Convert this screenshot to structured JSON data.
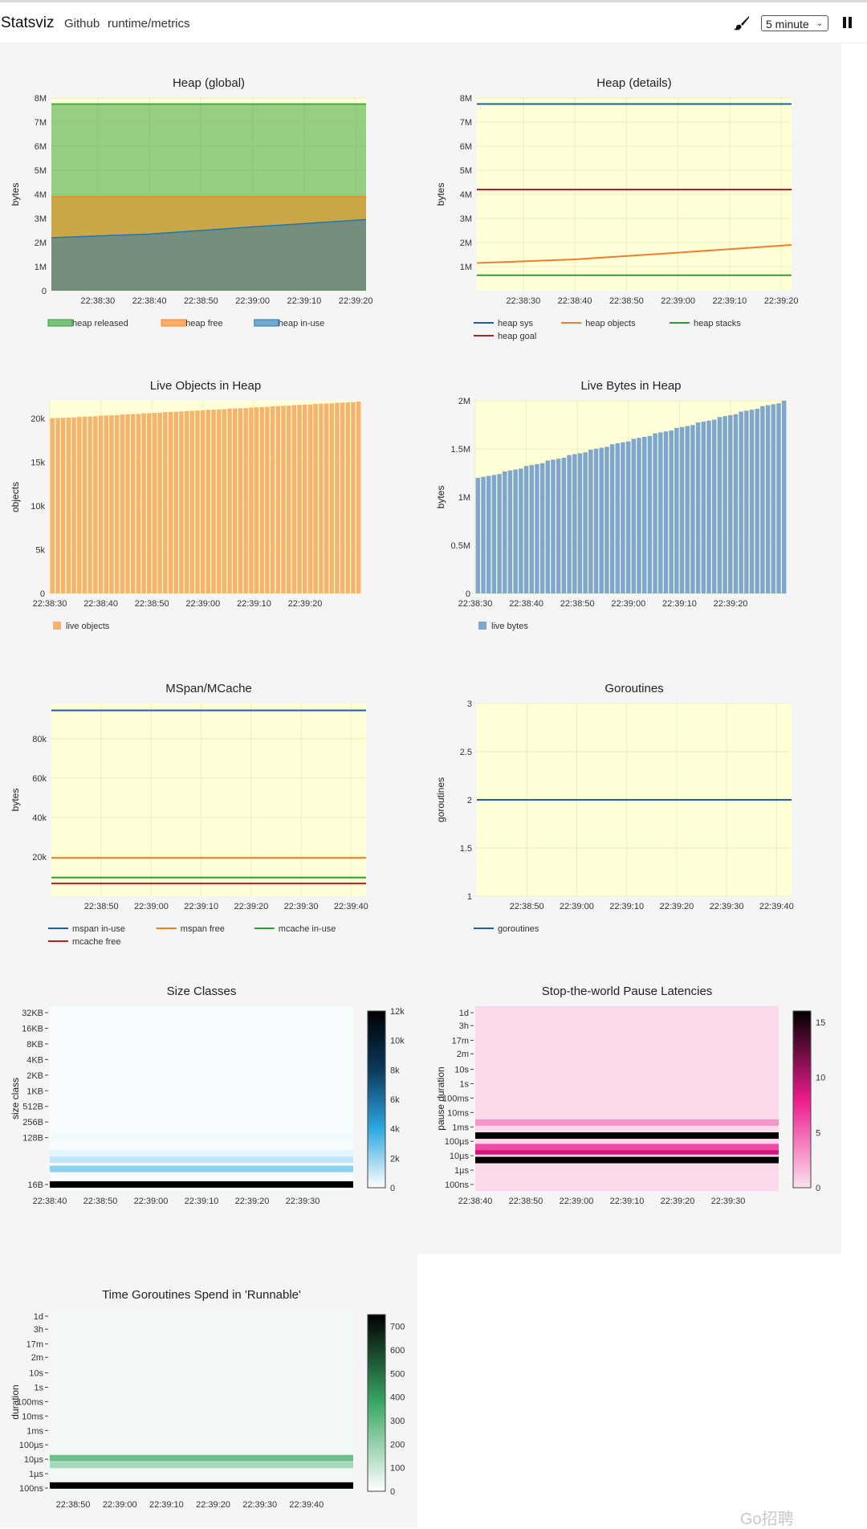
{
  "navbar": {
    "brand": "Statsviz",
    "links": [
      "Github",
      "runtime/metrics"
    ],
    "interval": "5 minute",
    "brush_icon": "brush-icon",
    "pause_icon": "pause-icon"
  },
  "colors": {
    "plot_bg": "#ffffd8",
    "page_bg": "#f5f5f5",
    "blue": "#1f5ea8",
    "orange": "#f07d2a",
    "green": "#2ca02c",
    "red": "#b22222"
  },
  "watermark": "Go招聘",
  "chart_data": [
    {
      "id": "heap-global",
      "type": "area",
      "title": "Heap (global)",
      "ylabel": "bytes",
      "ylim": [
        0,
        8000000
      ],
      "yticks": [
        "0",
        "1M",
        "2M",
        "3M",
        "4M",
        "5M",
        "6M",
        "7M",
        "8M"
      ],
      "xlim": [
        "22:38:21",
        "22:39:22"
      ],
      "xticks": [
        "22:38:30",
        "22:38:40",
        "22:38:50",
        "22:39:00",
        "22:39:10",
        "22:39:20"
      ],
      "legend": "bottom",
      "series": [
        {
          "name": "heap released",
          "color": "#2ca02c",
          "values_at": [
            "22:38:21",
            "22:39:22"
          ],
          "values": [
            7750000,
            7750000
          ]
        },
        {
          "name": "heap free",
          "color": "#ff7f0e",
          "values_at": [
            "22:38:21",
            "22:39:22"
          ],
          "values": [
            3900000,
            3900000
          ]
        },
        {
          "name": "heap in-use",
          "color": "#1f77b4",
          "values_at": [
            "22:38:21",
            "22:38:40",
            "22:39:00",
            "22:39:22"
          ],
          "values": [
            2200000,
            2350000,
            2650000,
            2950000
          ]
        }
      ]
    },
    {
      "id": "heap-details",
      "type": "line",
      "title": "Heap (details)",
      "ylabel": "bytes",
      "ylim": [
        0,
        8000000
      ],
      "yticks": [
        "1M",
        "2M",
        "3M",
        "4M",
        "5M",
        "6M",
        "7M",
        "8M"
      ],
      "xlim": [
        "22:38:21",
        "22:39:22"
      ],
      "xticks": [
        "22:38:30",
        "22:38:40",
        "22:38:50",
        "22:39:00",
        "22:39:10",
        "22:39:20"
      ],
      "legend": "bottom",
      "series": [
        {
          "name": "heap sys",
          "color": "#1f5ea8",
          "values": [
            7750000,
            7750000
          ]
        },
        {
          "name": "heap objects",
          "color": "#f07d2a",
          "values_at": [
            "22:38:21",
            "22:38:40",
            "22:39:00",
            "22:39:22"
          ],
          "values": [
            1150000,
            1300000,
            1580000,
            1900000
          ]
        },
        {
          "name": "heap stacks",
          "color": "#2ca02c",
          "values": [
            640000,
            640000
          ]
        },
        {
          "name": "heap goal",
          "color": "#b22222",
          "values": [
            4200000,
            4200000
          ]
        }
      ]
    },
    {
      "id": "live-objects",
      "type": "bar",
      "title": "Live Objects in Heap",
      "ylabel": "objects",
      "ylim": [
        0,
        22000
      ],
      "yticks": [
        "0",
        "5k",
        "10k",
        "15k",
        "20k"
      ],
      "xlim": [
        "22:38:30",
        "22:39:31"
      ],
      "xticks": [
        "22:38:30",
        "22:38:40",
        "22:38:50",
        "22:39:00",
        "22:39:10",
        "22:39:20"
      ],
      "legend": "bottom",
      "series": [
        {
          "name": "live objects",
          "color": "#f7b26b",
          "start": 20000,
          "end": 21900
        }
      ]
    },
    {
      "id": "live-bytes",
      "type": "bar",
      "title": "Live Bytes in Heap",
      "ylabel": "bytes",
      "ylim": [
        0,
        2000000
      ],
      "yticks": [
        "0",
        "0.5M",
        "1M",
        "1.5M",
        "2M"
      ],
      "xlim": [
        "22:38:30",
        "22:39:31"
      ],
      "xticks": [
        "22:38:30",
        "22:38:40",
        "22:38:50",
        "22:39:00",
        "22:39:10",
        "22:39:20"
      ],
      "legend": "bottom",
      "series": [
        {
          "name": "live bytes",
          "color": "#7ea6cf",
          "start": 1200000,
          "end": 2000000
        }
      ]
    },
    {
      "id": "mspan-mcache",
      "type": "line",
      "title": "MSpan/MCache",
      "ylabel": "bytes",
      "ylim": [
        0,
        98000
      ],
      "yticks": [
        "20k",
        "40k",
        "60k",
        "80k"
      ],
      "xlim": [
        "22:38:40",
        "22:39:43"
      ],
      "xticks": [
        "22:38:50",
        "22:39:00",
        "22:39:10",
        "22:39:20",
        "22:39:30",
        "22:39:40"
      ],
      "legend": "bottom",
      "series": [
        {
          "name": "mspan in-use",
          "color": "#1f5ea8",
          "values": [
            94500,
            94500
          ]
        },
        {
          "name": "mspan free",
          "color": "#f07d2a",
          "values": [
            19500,
            19500
          ]
        },
        {
          "name": "mcache in-use",
          "color": "#2ca02c",
          "values": [
            9500,
            9500
          ]
        },
        {
          "name": "mcache free",
          "color": "#b22222",
          "values": [
            6500,
            6500
          ]
        }
      ]
    },
    {
      "id": "goroutines",
      "type": "line",
      "title": "Goroutines",
      "ylabel": "goroutines",
      "ylim": [
        1,
        3
      ],
      "yticks": [
        "1",
        "1.5",
        "2",
        "2.5",
        "3"
      ],
      "xlim": [
        "22:38:40",
        "22:39:43"
      ],
      "xticks": [
        "22:38:50",
        "22:39:00",
        "22:39:10",
        "22:39:20",
        "22:39:30",
        "22:39:40"
      ],
      "legend": "bottom",
      "series": [
        {
          "name": "goroutines",
          "color": "#1f5ea8",
          "values": [
            2,
            2
          ]
        }
      ]
    },
    {
      "id": "size-classes",
      "type": "heatmap",
      "title": "Size Classes",
      "ylabel": "size class",
      "yticks": [
        "16B",
        "128B",
        "256B",
        "512B",
        "1KB",
        "2KB",
        "4KB",
        "8KB",
        "16KB",
        "32KB"
      ],
      "xlim": [
        "22:38:40",
        "22:39:40"
      ],
      "xticks": [
        "22:38:40",
        "22:38:50",
        "22:39:00",
        "22:39:10",
        "22:39:20",
        "22:39:30"
      ],
      "colorscale": [
        "#ffffff",
        "#2ea7e0",
        "#0a3a5e",
        "#000000"
      ],
      "colorbar_ticks": [
        "0",
        "2k",
        "4k",
        "6k",
        "8k",
        "10k",
        "12k"
      ],
      "zmax": 12000,
      "bands": [
        {
          "y": "16B",
          "z": 12000
        },
        {
          "y": "32B",
          "z": 2200
        },
        {
          "y": "48B",
          "z": 1200
        },
        {
          "y": "64B",
          "z": 500
        },
        {
          "y": "128B",
          "z": 250
        }
      ],
      "background_z": 150
    },
    {
      "id": "stw-pause",
      "type": "heatmap",
      "title": "Stop-the-world Pause Latencies",
      "ylabel": "pause duration",
      "yticks": [
        "100ns",
        "1µs",
        "10µs",
        "100µs",
        "1ms",
        "10ms",
        "100ms",
        "1s",
        "10s",
        "2m",
        "17m",
        "3h",
        "1d"
      ],
      "xlim": [
        "22:38:40",
        "22:39:40"
      ],
      "xticks": [
        "22:38:40",
        "22:38:50",
        "22:39:00",
        "22:39:10",
        "22:39:20",
        "22:39:30"
      ],
      "colorscale": [
        "#fbe0ef",
        "#ec1b8c",
        "#000000"
      ],
      "colorbar_ticks": [
        "0",
        "5",
        "10",
        "15"
      ],
      "zmax": 16,
      "bands": [
        {
          "y": "5µs",
          "z": 16
        },
        {
          "y": "20µs",
          "z": 9
        },
        {
          "y": "40µs",
          "z": 6
        },
        {
          "y": "250µs",
          "z": 16
        },
        {
          "y": "2ms",
          "z": 3
        }
      ],
      "background_z": 0.3
    },
    {
      "id": "runnable",
      "type": "heatmap",
      "title": "Time Goroutines Spend in 'Runnable'",
      "ylabel": "duration",
      "yticks": [
        "100ns",
        "1µs",
        "10µs",
        "100µs",
        "1ms",
        "10ms",
        "100ms",
        "1s",
        "10s",
        "2m",
        "17m",
        "3h",
        "1d"
      ],
      "xlim": [
        "22:38:45",
        "22:39:50"
      ],
      "xticks": [
        "22:38:50",
        "22:39:00",
        "22:39:10",
        "22:39:20",
        "22:39:30",
        "22:39:40"
      ],
      "colorscale": [
        "#ffffff",
        "#3aa864",
        "#000000"
      ],
      "colorbar_ticks": [
        "0",
        "100",
        "200",
        "300",
        "400",
        "500",
        "600",
        "700"
      ],
      "zmax": 750,
      "bands": [
        {
          "y": "150ns",
          "z": 750
        },
        {
          "y": "4µs",
          "z": 170
        },
        {
          "y": "12µs",
          "z": 280
        }
      ],
      "background_z": 25
    }
  ]
}
